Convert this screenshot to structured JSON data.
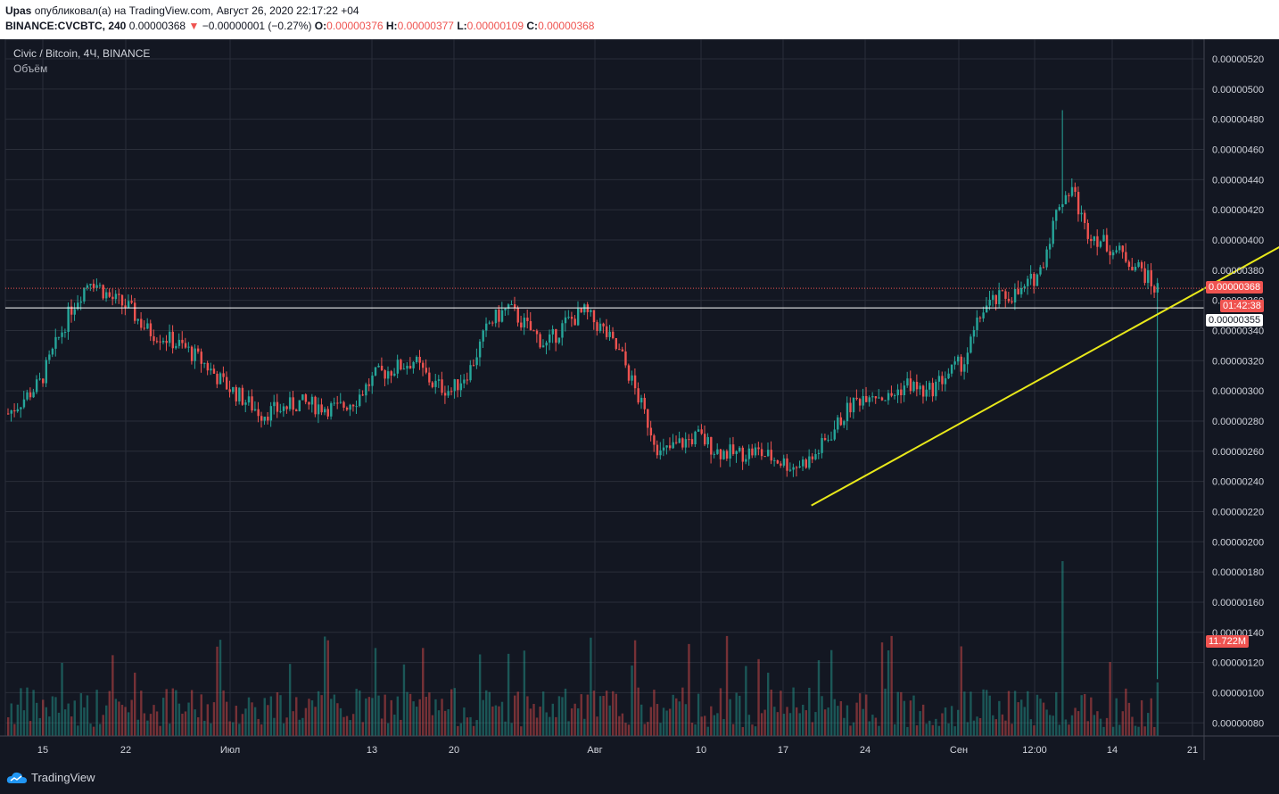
{
  "header": {
    "user": "Upas",
    "published_text": "опубликовал(а) на TradingView.com, Август 26, 2020 22:17:22 +04",
    "symbol": "BINANCE:CVCBTC, 240",
    "last_price": "0.00000368",
    "change_arrow": "▼",
    "change": "−0.00000001 (−0.27%)",
    "o_label": "O:",
    "o_value": "0.00000376",
    "h_label": "H:",
    "h_value": "0.00000377",
    "l_label": "L:",
    "l_value": "0.00000109",
    "c_label": "C:",
    "c_value": "0.00000368"
  },
  "legend": {
    "symbol_title": "Civic / Bitcoin, 4Ч, BINANCE",
    "volume_label": "Объём"
  },
  "badges": {
    "price": "0.00000368",
    "countdown": "01:42:38",
    "hline": "0.00000355",
    "volume": "11.722M"
  },
  "footer": {
    "brand": "TradingView"
  },
  "colors": {
    "up": "#26a69a",
    "down": "#ef5350",
    "trendline": "#e8e81a",
    "background": "#131722",
    "grid": "#2a2e39"
  },
  "chart_data": {
    "type": "candlestick",
    "price_axis_ticks": [
      "0.00000520",
      "0.00000500",
      "0.00000480",
      "0.00000460",
      "0.00000440",
      "0.00000420",
      "0.00000400",
      "0.00000380",
      "0.00000360",
      "0.00000340",
      "0.00000320",
      "0.00000300",
      "0.00000280",
      "0.00000260",
      "0.00000240",
      "0.00000220",
      "0.00000200",
      "0.00000180",
      "0.00000160",
      "0.00000140",
      "0.00000120",
      "0.00000100",
      "0.00000080"
    ],
    "time_axis_ticks": [
      "15",
      "22",
      "Июл",
      "13",
      "20",
      "Авг",
      "10",
      "17",
      "24",
      "Сен",
      "12:00",
      "14",
      "21"
    ],
    "ylim": [
      7e-07,
      5.3e-06
    ],
    "close_path": [
      [
        0,
        2.85
      ],
      [
        5,
        2.95
      ],
      [
        10,
        3.05
      ],
      [
        15,
        3.3
      ],
      [
        20,
        3.55
      ],
      [
        26,
        3.75
      ],
      [
        32,
        3.62
      ],
      [
        38,
        3.55
      ],
      [
        44,
        3.4
      ],
      [
        50,
        3.35
      ],
      [
        56,
        3.28
      ],
      [
        62,
        3.18
      ],
      [
        68,
        3.05
      ],
      [
        74,
        2.95
      ],
      [
        80,
        2.85
      ],
      [
        86,
        2.88
      ],
      [
        92,
        2.92
      ],
      [
        98,
        2.9
      ],
      [
        104,
        2.88
      ],
      [
        110,
        2.95
      ],
      [
        116,
        3.1
      ],
      [
        122,
        3.15
      ],
      [
        128,
        3.2
      ],
      [
        134,
        3.05
      ],
      [
        140,
        3.0
      ],
      [
        146,
        3.15
      ],
      [
        152,
        3.45
      ],
      [
        158,
        3.55
      ],
      [
        164,
        3.42
      ],
      [
        170,
        3.3
      ],
      [
        176,
        3.45
      ],
      [
        182,
        3.52
      ],
      [
        188,
        3.4
      ],
      [
        194,
        3.22
      ],
      [
        200,
        2.9
      ],
      [
        206,
        2.58
      ],
      [
        212,
        2.65
      ],
      [
        218,
        2.7
      ],
      [
        224,
        2.6
      ],
      [
        230,
        2.58
      ],
      [
        236,
        2.6
      ],
      [
        242,
        2.55
      ],
      [
        248,
        2.5
      ],
      [
        254,
        2.55
      ],
      [
        260,
        2.72
      ],
      [
        266,
        2.9
      ],
      [
        272,
        3.0
      ],
      [
        278,
        2.95
      ],
      [
        284,
        3.05
      ],
      [
        290,
        2.98
      ],
      [
        296,
        3.1
      ],
      [
        302,
        3.2
      ],
      [
        308,
        3.55
      ],
      [
        314,
        3.62
      ],
      [
        320,
        3.65
      ],
      [
        326,
        3.8
      ],
      [
        332,
        4.25
      ],
      [
        336,
        4.35
      ],
      [
        340,
        4.08
      ],
      [
        346,
        3.98
      ],
      [
        352,
        3.9
      ],
      [
        358,
        3.8
      ],
      [
        362,
        3.68
      ]
    ],
    "trendline": {
      "from": [
        254,
        2.24
      ],
      "to": [
        430,
        4.28
      ]
    },
    "horizontal_line": 3.55,
    "price_line": 3.68
  }
}
